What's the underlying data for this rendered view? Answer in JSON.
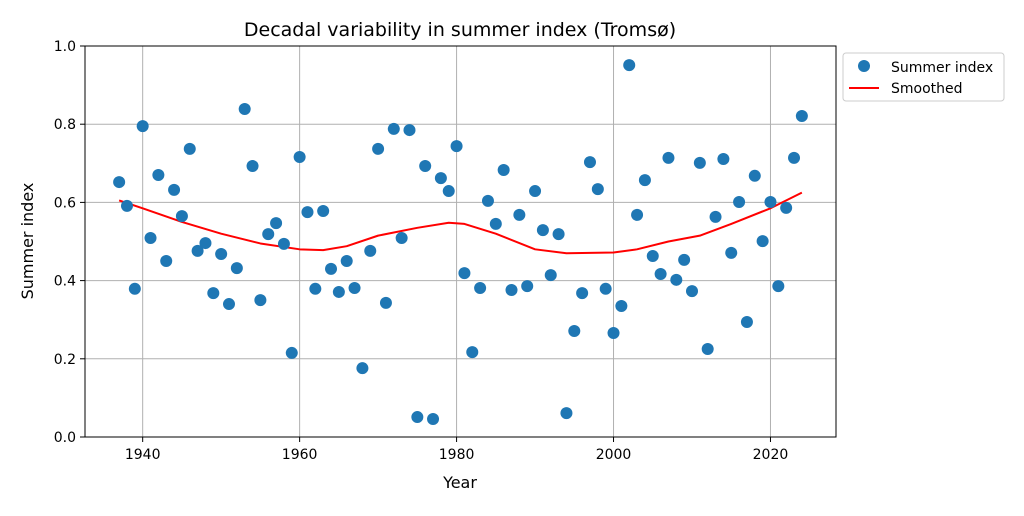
{
  "chart_data": {
    "type": "scatter",
    "title": "Decadal variability in summer index (Tromsø)",
    "xlabel": "Year",
    "ylabel": "Summer index",
    "xlim": [
      1932.65,
      2028.35
    ],
    "ylim": [
      0,
      1
    ],
    "xticks": [
      "1940",
      "1960",
      "1980",
      "2000",
      "2020"
    ],
    "yticks": [
      "0.0",
      "0.2",
      "0.4",
      "0.6",
      "0.8",
      "1.0"
    ],
    "grid": true,
    "legend_position": "outside-top-right",
    "series": [
      {
        "name": "Summer index",
        "kind": "points",
        "color": "#1f77b4",
        "x": [
          1937,
          1938,
          1939,
          1940,
          1941,
          1942,
          1943,
          1944,
          1945,
          1946,
          1947,
          1948,
          1949,
          1950,
          1951,
          1952,
          1953,
          1954,
          1955,
          1956,
          1957,
          1958,
          1959,
          1960,
          1961,
          1962,
          1963,
          1964,
          1965,
          1966,
          1967,
          1968,
          1969,
          1970,
          1971,
          1972,
          1973,
          1974,
          1975,
          1976,
          1977,
          1978,
          1979,
          1980,
          1981,
          1982,
          1983,
          1984,
          1985,
          1986,
          1987,
          1988,
          1989,
          1990,
          1991,
          1992,
          1993,
          1994,
          1995,
          1996,
          1997,
          1998,
          1999,
          2000,
          2001,
          2002,
          2003,
          2004,
          2005,
          2006,
          2007,
          2008,
          2009,
          2010,
          2011,
          2012,
          2013,
          2014,
          2015,
          2016,
          2017,
          2018,
          2019,
          2020,
          2021,
          2022,
          2023,
          2024
        ],
        "y": [
          0.652,
          0.591,
          0.379,
          0.795,
          0.509,
          0.67,
          0.45,
          0.632,
          0.565,
          0.737,
          0.476,
          0.496,
          0.368,
          0.468,
          0.34,
          0.432,
          0.839,
          0.693,
          0.35,
          0.519,
          0.547,
          0.494,
          0.215,
          0.716,
          0.575,
          0.379,
          0.578,
          0.43,
          0.371,
          0.45,
          0.381,
          0.176,
          0.476,
          0.737,
          0.343,
          0.788,
          0.509,
          0.785,
          0.051,
          0.693,
          0.046,
          0.662,
          0.629,
          0.744,
          0.419,
          0.217,
          0.381,
          0.604,
          0.545,
          0.683,
          0.376,
          0.568,
          0.386,
          0.629,
          0.529,
          0.414,
          0.519,
          0.061,
          0.271,
          0.368,
          0.703,
          0.634,
          0.379,
          0.266,
          0.335,
          0.951,
          0.568,
          0.657,
          0.463,
          0.417,
          0.714,
          0.402,
          0.453,
          0.373,
          0.701,
          0.225,
          0.563,
          0.711,
          0.471,
          0.601,
          0.294,
          0.668,
          0.501,
          0.601,
          0.386,
          0.586,
          0.714,
          0.821
        ]
      },
      {
        "name": "Smoothed",
        "kind": "line",
        "color": "#ff0000",
        "x": [
          1937,
          1940,
          1945,
          1950,
          1955,
          1960,
          1963,
          1966,
          1970,
          1975,
          1979,
          1981,
          1985,
          1990,
          1994,
          2000,
          2003,
          2007,
          2011,
          2015,
          2020,
          2024
        ],
        "y": [
          0.605,
          0.585,
          0.55,
          0.52,
          0.495,
          0.48,
          0.478,
          0.488,
          0.515,
          0.535,
          0.548,
          0.545,
          0.52,
          0.48,
          0.47,
          0.472,
          0.48,
          0.5,
          0.515,
          0.545,
          0.585,
          0.625
        ]
      }
    ]
  }
}
